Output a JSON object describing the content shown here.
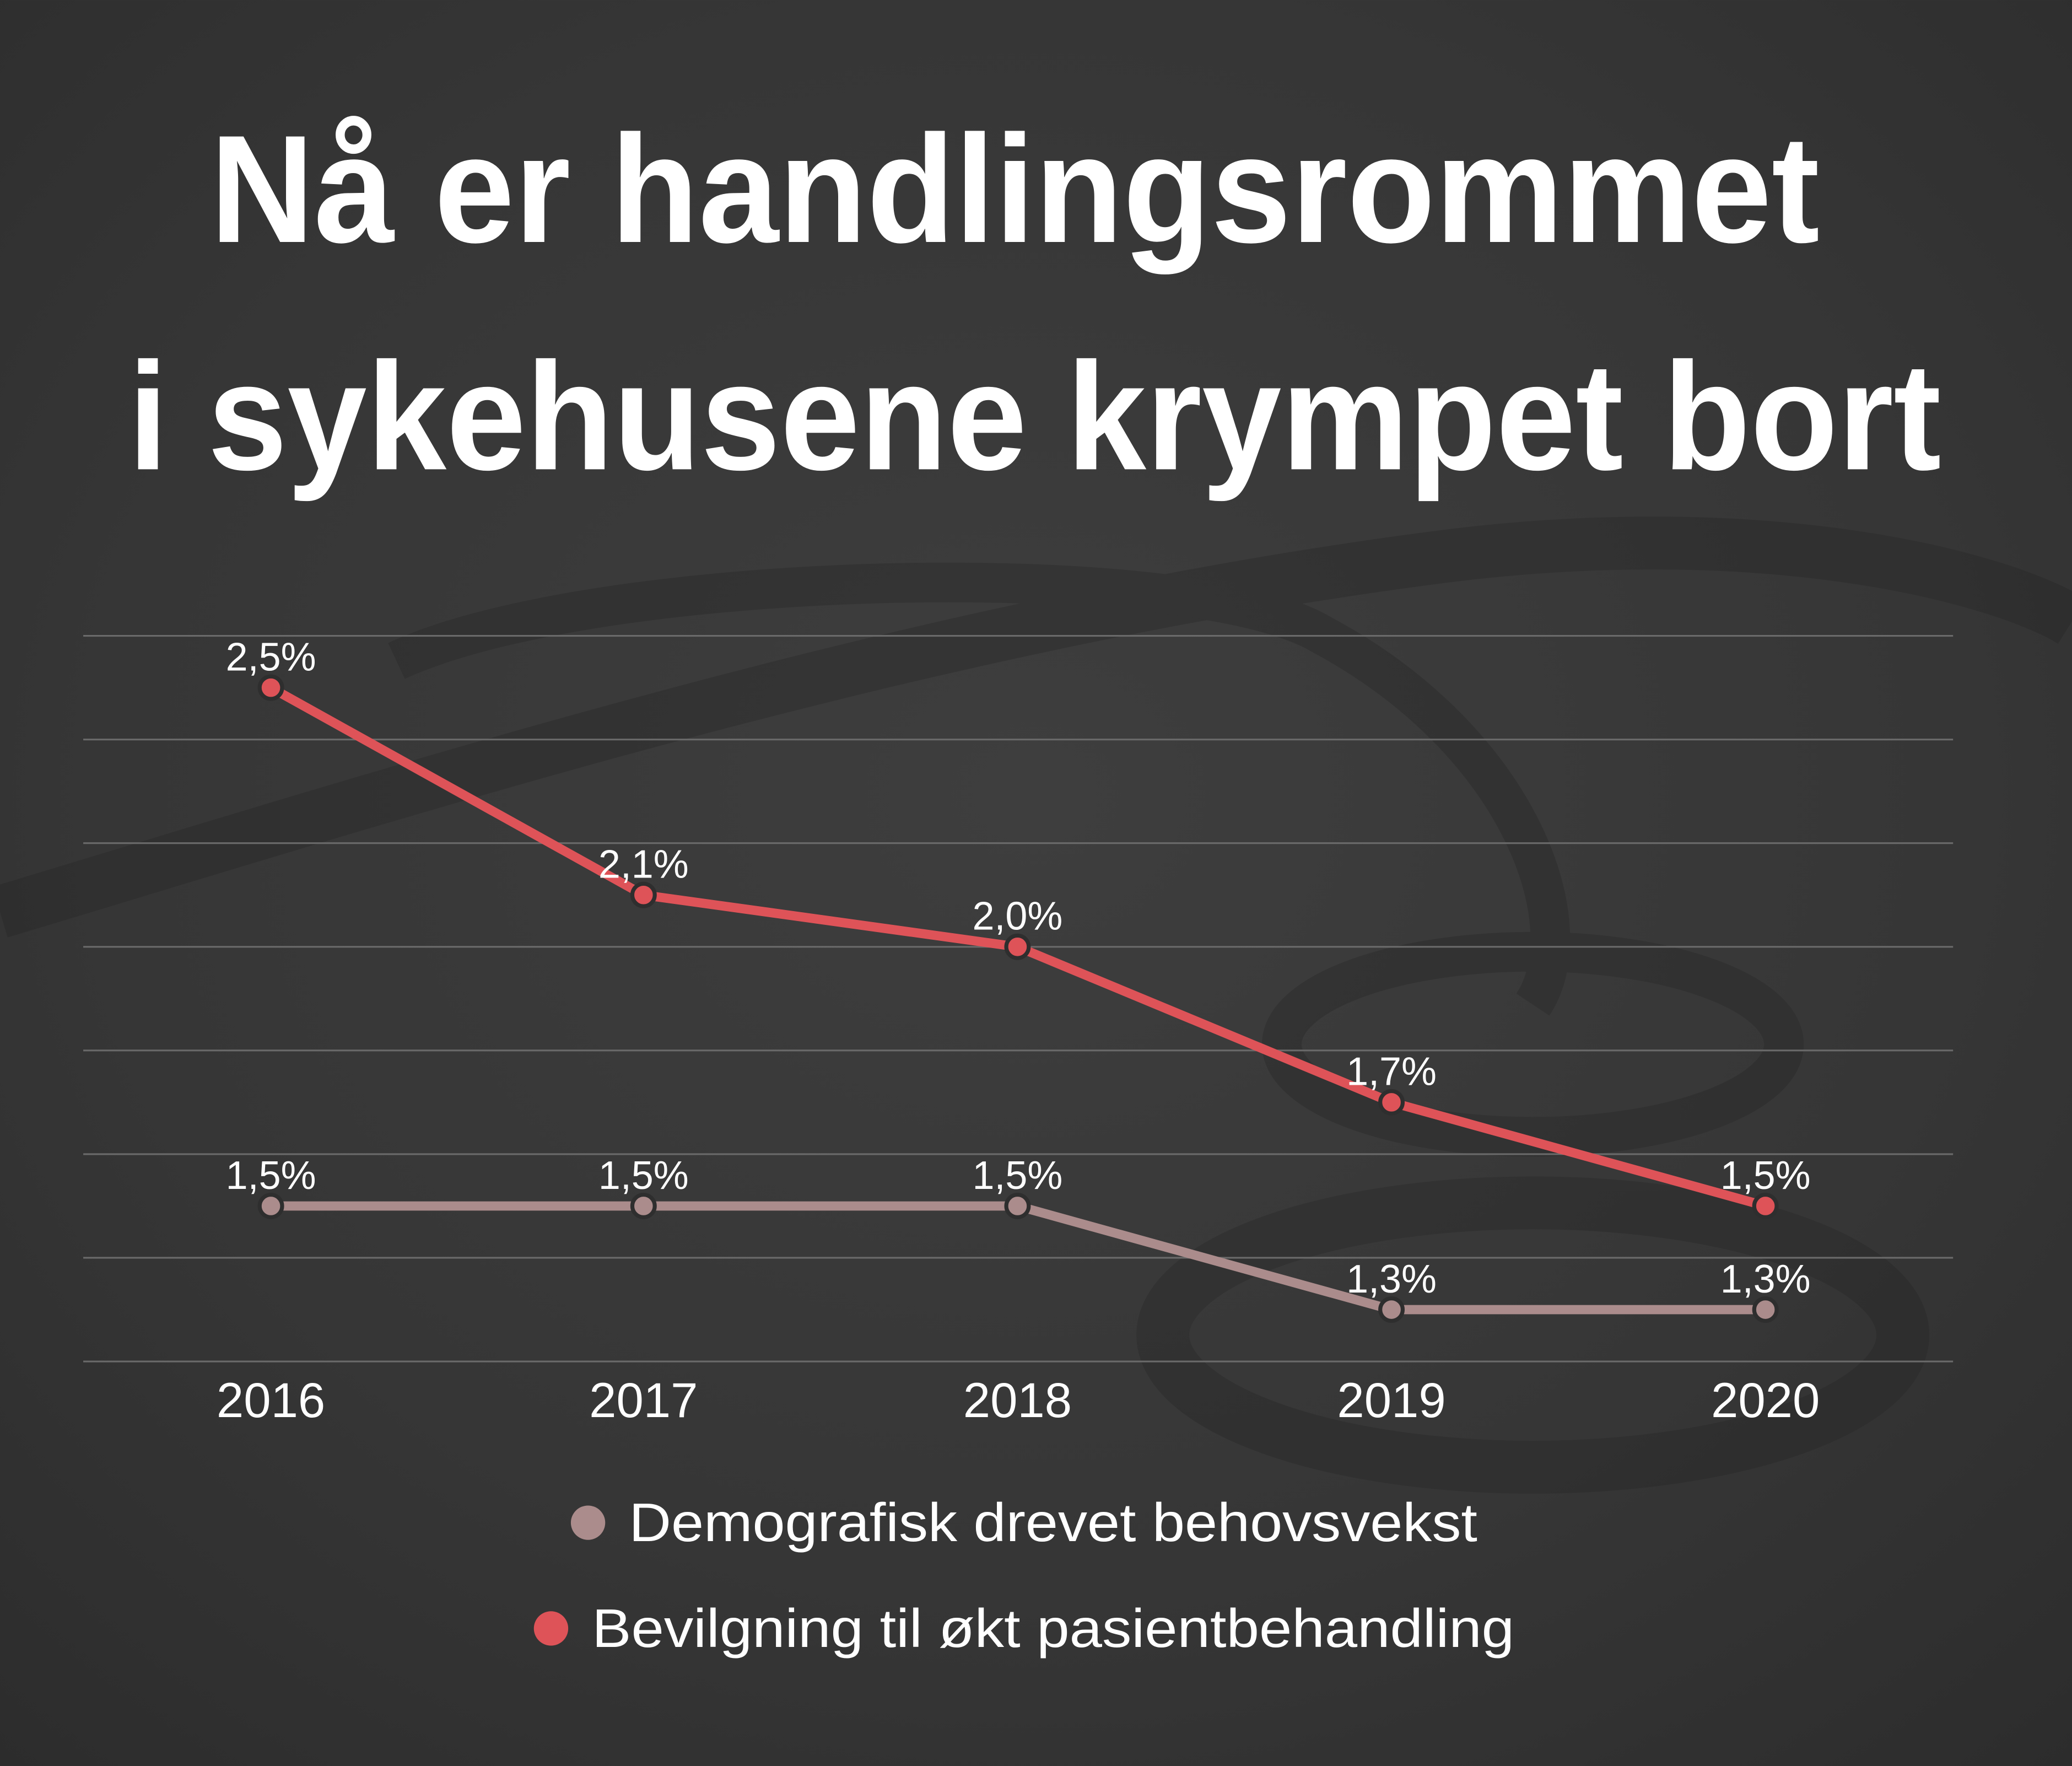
{
  "title": {
    "line1": "Nå er handlingsrommet",
    "line2": "i sykehusene krympet bort"
  },
  "chart_data": {
    "type": "line",
    "title": "Nå er handlingsrommet i sykehusene krympet bort",
    "categories": [
      "2016",
      "2017",
      "2018",
      "2019",
      "2020"
    ],
    "series": [
      {
        "name": "Demografisk drevet behovsvekst",
        "values": [
          1.5,
          1.5,
          1.5,
          1.3,
          1.3
        ],
        "labels": [
          "1,5%",
          "1,5%",
          "1,5%",
          "1,3%",
          "1,3%"
        ],
        "color": "#ab8c8c"
      },
      {
        "name": "Bevilgning til økt pasientbehandling",
        "values": [
          2.5,
          2.1,
          2.0,
          1.7,
          1.5
        ],
        "labels": [
          "2,5%",
          "2,1%",
          "2,0%",
          "1,7%",
          "1,5%"
        ],
        "color": "#de5358"
      }
    ],
    "xlabel": "",
    "ylabel": "",
    "ylim": [
      1.2,
      2.6
    ],
    "ygrid_step": 0.2,
    "grid": true,
    "y_tick_labels_shown": false,
    "legend_position": "bottom-center"
  },
  "colors": {
    "background": "#383838",
    "gridline": "#6a6a6a",
    "text": "#ffffff"
  }
}
